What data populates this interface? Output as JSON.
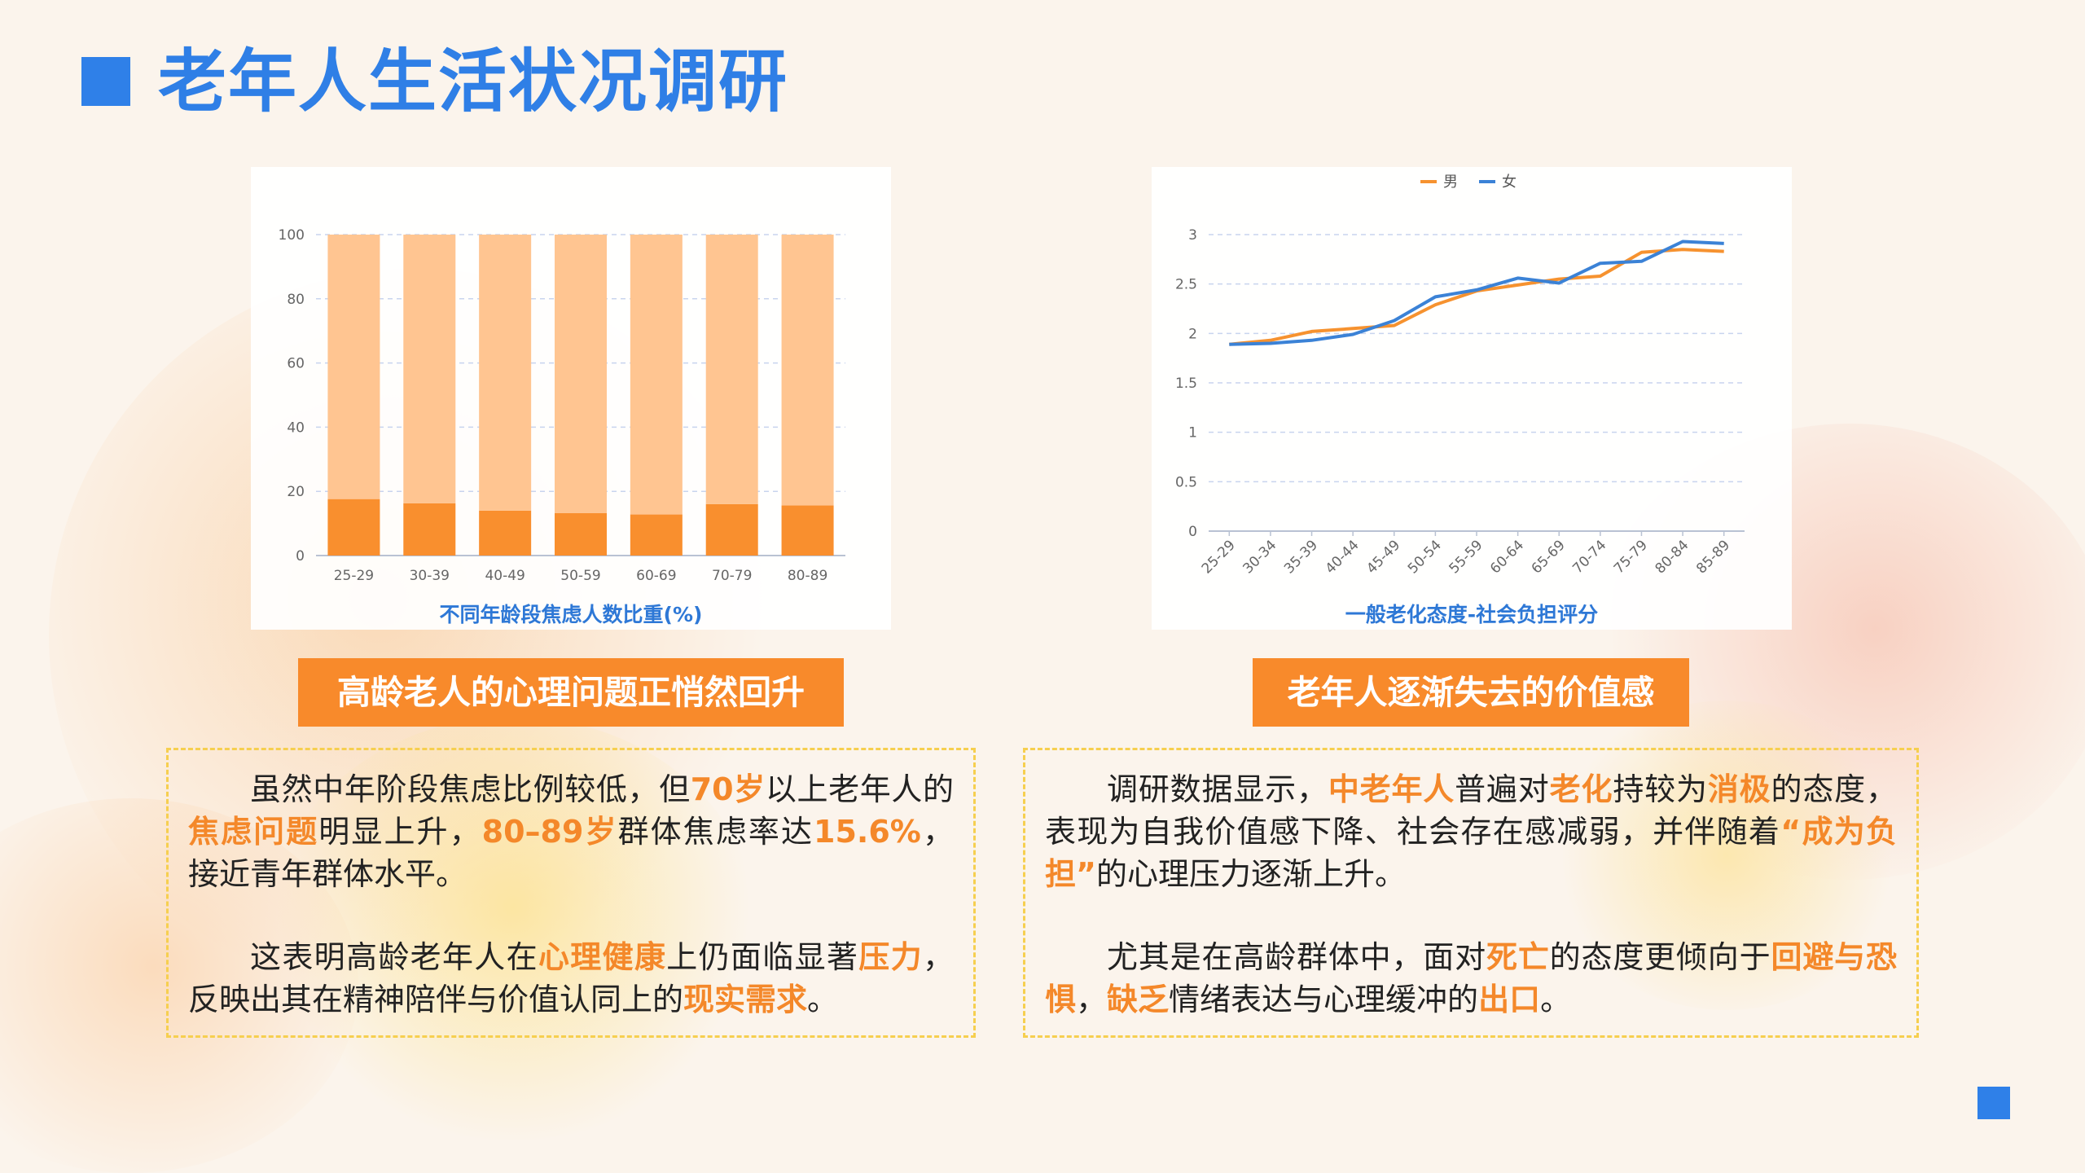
{
  "title": "老年人生活状况调研",
  "colors": {
    "title_blue": "#2f80e8",
    "accent_orange": "#f88a2b",
    "bar_light": "#ffc591",
    "bar_dark": "#f98f2e",
    "line_male": "#f6922f",
    "line_female": "#3b82d6"
  },
  "chart_data": [
    {
      "type": "bar",
      "title": "不同年龄段焦虑人数比重(%)",
      "categories": [
        "25-29",
        "30-39",
        "40-49",
        "50-59",
        "60-69",
        "70-79",
        "80-89"
      ],
      "series": [
        {
          "values": [
            17.6,
            16.3,
            14.0,
            13.2,
            12.8,
            16.0,
            15.6
          ]
        },
        {
          "values": [
            82.4,
            83.7,
            86.0,
            86.8,
            87.2,
            84.0,
            84.4
          ]
        }
      ],
      "stacked": true,
      "ylim": [
        0,
        100
      ],
      "yticks": [
        "0",
        "20",
        "40",
        "60",
        "80",
        "100"
      ],
      "grid": true
    },
    {
      "type": "line",
      "title": "一般老化态度-社会负担评分",
      "categories": [
        "25-29",
        "30-34",
        "35-39",
        "40-44",
        "45-49",
        "50-54",
        "55-59",
        "60-64",
        "65-69",
        "70-74",
        "75-79",
        "80-84",
        "85-89"
      ],
      "series": [
        {
          "name": "男",
          "values": [
            1.89,
            1.93,
            2.02,
            2.05,
            2.08,
            2.29,
            2.43,
            2.49,
            2.55,
            2.58,
            2.82,
            2.85,
            2.83
          ]
        },
        {
          "name": "女",
          "values": [
            1.89,
            1.9,
            1.93,
            1.99,
            2.13,
            2.37,
            2.44,
            2.56,
            2.51,
            2.71,
            2.73,
            2.93,
            2.91
          ]
        }
      ],
      "ylim": [
        0,
        3
      ],
      "yticks": [
        "0",
        "0.5",
        "1",
        "1.5",
        "2",
        "2.5",
        "3"
      ],
      "legend": "top-center",
      "grid": true
    }
  ],
  "left": {
    "banner": "高龄老人的心理问题正悄然回升",
    "p1": [
      {
        "t": "虽然中年阶段焦虑比例较低，但"
      },
      {
        "t": "70岁",
        "h": true
      },
      {
        "t": "以上老年人的"
      },
      {
        "t": "焦虑问题",
        "h": true
      },
      {
        "t": "明显上升，"
      },
      {
        "t": "80–89岁",
        "h": true
      },
      {
        "t": "群体焦虑率达"
      },
      {
        "t": "15.6%",
        "h": true
      },
      {
        "t": "，接近青年群体水平。"
      }
    ],
    "p2": [
      {
        "t": "这表明高龄老年人在"
      },
      {
        "t": "心理健康",
        "h": true
      },
      {
        "t": "上仍面临显著"
      },
      {
        "t": "压力",
        "h": true
      },
      {
        "t": "，反映出其在精神陪伴与价值认同上的"
      },
      {
        "t": "现实需求",
        "h": true
      },
      {
        "t": "。"
      }
    ]
  },
  "right": {
    "banner": "老年人逐渐失去的价值感",
    "p1": [
      {
        "t": "调研数据显示，"
      },
      {
        "t": "中老年人",
        "h": true
      },
      {
        "t": "普遍对"
      },
      {
        "t": "老化",
        "h": true
      },
      {
        "t": "持较为"
      },
      {
        "t": "消极",
        "h": true
      },
      {
        "t": "的态度，表现为自我价值感下降、社会存在感减弱，并伴随着"
      },
      {
        "t": "“成为负担”",
        "h": true
      },
      {
        "t": "的心理压力逐渐上升。"
      }
    ],
    "p2": [
      {
        "t": "尤其是在高龄群体中，面对"
      },
      {
        "t": "死亡",
        "h": true
      },
      {
        "t": "的态度更倾向于"
      },
      {
        "t": "回避与恐惧",
        "h": true
      },
      {
        "t": "，"
      },
      {
        "t": "缺乏",
        "h": true
      },
      {
        "t": "情绪表达与心理缓冲的"
      },
      {
        "t": "出口",
        "h": true
      },
      {
        "t": "。"
      }
    ]
  }
}
